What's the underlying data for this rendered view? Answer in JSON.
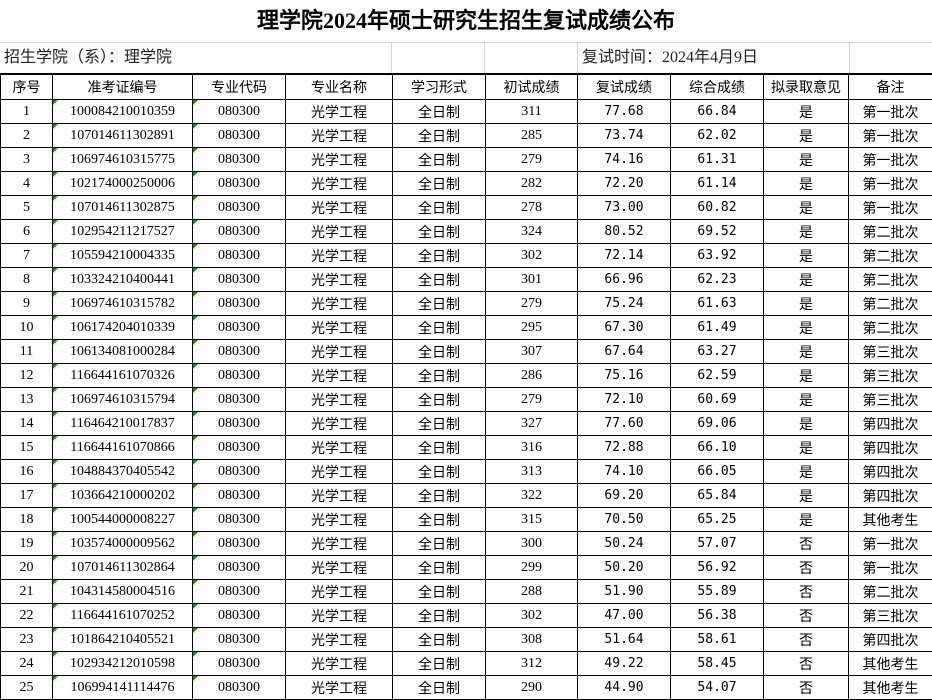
{
  "title": "理学院2024年硕士研究生招生复试成绩公布",
  "info": {
    "college": "招生学院（系）：理学院",
    "date": "复试时间：2024年4月9日"
  },
  "columns": [
    "序号",
    "准考证编号",
    "专业代码",
    "专业名称",
    "学习形式",
    "初试成绩",
    "复试成绩",
    "综合成绩",
    "拟录取意见",
    "备注"
  ],
  "rows": [
    [
      "1",
      "100084210010359",
      "080300",
      "光学工程",
      "全日制",
      "311",
      "77.68",
      "66.84",
      "是",
      "第一批次"
    ],
    [
      "2",
      "107014611302891",
      "080300",
      "光学工程",
      "全日制",
      "285",
      "73.74",
      "62.02",
      "是",
      "第一批次"
    ],
    [
      "3",
      "106974610315775",
      "080300",
      "光学工程",
      "全日制",
      "279",
      "74.16",
      "61.31",
      "是",
      "第一批次"
    ],
    [
      "4",
      "102174000250006",
      "080300",
      "光学工程",
      "全日制",
      "282",
      "72.20",
      "61.14",
      "是",
      "第一批次"
    ],
    [
      "5",
      "107014611302875",
      "080300",
      "光学工程",
      "全日制",
      "278",
      "73.00",
      "60.82",
      "是",
      "第一批次"
    ],
    [
      "6",
      "102954211217527",
      "080300",
      "光学工程",
      "全日制",
      "324",
      "80.52",
      "69.52",
      "是",
      "第二批次"
    ],
    [
      "7",
      "105594210004335",
      "080300",
      "光学工程",
      "全日制",
      "302",
      "72.14",
      "63.92",
      "是",
      "第二批次"
    ],
    [
      "8",
      "103324210400441",
      "080300",
      "光学工程",
      "全日制",
      "301",
      "66.96",
      "62.23",
      "是",
      "第二批次"
    ],
    [
      "9",
      "106974610315782",
      "080300",
      "光学工程",
      "全日制",
      "279",
      "75.24",
      "61.63",
      "是",
      "第二批次"
    ],
    [
      "10",
      "106174204010339",
      "080300",
      "光学工程",
      "全日制",
      "295",
      "67.30",
      "61.49",
      "是",
      "第二批次"
    ],
    [
      "11",
      "106134081000284",
      "080300",
      "光学工程",
      "全日制",
      "307",
      "67.64",
      "63.27",
      "是",
      "第三批次"
    ],
    [
      "12",
      "116644161070326",
      "080300",
      "光学工程",
      "全日制",
      "286",
      "75.16",
      "62.59",
      "是",
      "第三批次"
    ],
    [
      "13",
      "106974610315794",
      "080300",
      "光学工程",
      "全日制",
      "279",
      "72.10",
      "60.69",
      "是",
      "第三批次"
    ],
    [
      "14",
      "116464210017837",
      "080300",
      "光学工程",
      "全日制",
      "327",
      "77.60",
      "69.06",
      "是",
      "第四批次"
    ],
    [
      "15",
      "116644161070866",
      "080300",
      "光学工程",
      "全日制",
      "316",
      "72.88",
      "66.10",
      "是",
      "第四批次"
    ],
    [
      "16",
      "104884370405542",
      "080300",
      "光学工程",
      "全日制",
      "313",
      "74.10",
      "66.05",
      "是",
      "第四批次"
    ],
    [
      "17",
      "103664210000202",
      "080300",
      "光学工程",
      "全日制",
      "322",
      "69.20",
      "65.84",
      "是",
      "第四批次"
    ],
    [
      "18",
      "100544000008227",
      "080300",
      "光学工程",
      "全日制",
      "315",
      "70.50",
      "65.25",
      "是",
      "其他考生"
    ],
    [
      "19",
      "103574000009562",
      "080300",
      "光学工程",
      "全日制",
      "300",
      "50.24",
      "57.07",
      "否",
      "第一批次"
    ],
    [
      "20",
      "107014611302864",
      "080300",
      "光学工程",
      "全日制",
      "299",
      "50.20",
      "56.92",
      "否",
      "第一批次"
    ],
    [
      "21",
      "104314580004516",
      "080300",
      "光学工程",
      "全日制",
      "288",
      "51.90",
      "55.89",
      "否",
      "第二批次"
    ],
    [
      "22",
      "116644161070252",
      "080300",
      "光学工程",
      "全日制",
      "302",
      "47.00",
      "56.38",
      "否",
      "第三批次"
    ],
    [
      "23",
      "101864210405521",
      "080300",
      "光学工程",
      "全日制",
      "308",
      "51.64",
      "58.61",
      "否",
      "第四批次"
    ],
    [
      "24",
      "102934212010598",
      "080300",
      "光学工程",
      "全日制",
      "312",
      "49.22",
      "58.45",
      "否",
      "其他考生"
    ],
    [
      "25",
      "106994141114476",
      "080300",
      "光学工程",
      "全日制",
      "290",
      "44.90",
      "54.07",
      "否",
      "其他考生"
    ]
  ],
  "colors": {
    "grid": "#000000",
    "light_grid": "#d4d4d4",
    "text_marker": "#1a8a1a"
  }
}
